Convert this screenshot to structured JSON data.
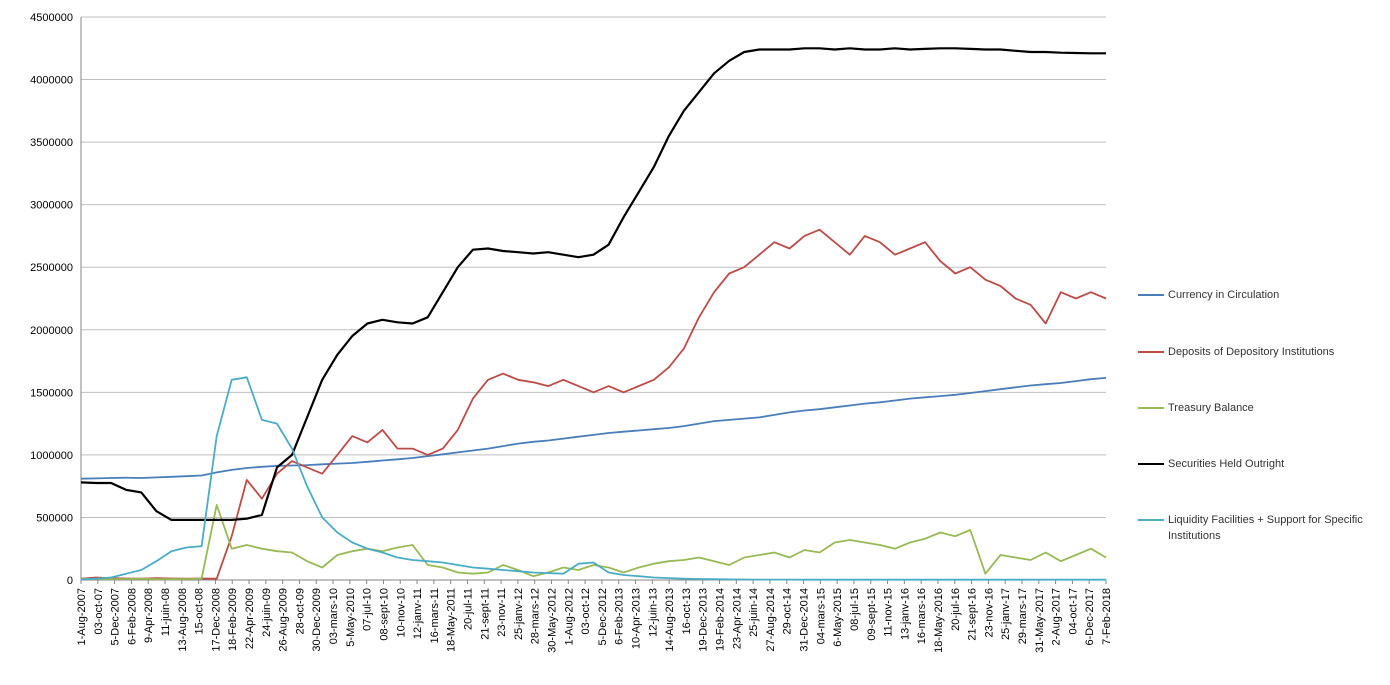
{
  "chart_data": {
    "type": "line",
    "title": "",
    "xlabel": "",
    "ylabel": "",
    "ylim": [
      0,
      4500000
    ],
    "yticks": [
      0,
      500000,
      1000000,
      1500000,
      2000000,
      2500000,
      3000000,
      3500000,
      4000000,
      4500000
    ],
    "grid": "horizontal",
    "legend_position": "right",
    "x_tick_labels": [
      "1-Aug-2007",
      "03-oct-07",
      "5-Dec-2007",
      "6-Feb-2008",
      "9-Apr-2008",
      "11-juin-08",
      "13-Aug-2008",
      "15-oct-08",
      "17-Dec-2008",
      "18-Feb-2009",
      "22-Apr-2009",
      "24-juin-09",
      "26-Aug-2009",
      "28-oct-09",
      "30-Dec-2009",
      "03-mars-10",
      "5-May-2010",
      "07-jul-10",
      "08-sept-10",
      "10-nov-10",
      "12-janv-11",
      "16-mars-11",
      "18-May-2011",
      "20-jul-11",
      "21-sept-11",
      "23-nov-11",
      "25-janv-12",
      "28-mars-12",
      "30-May-2012",
      "1-Aug-2012",
      "03-oct-12",
      "5-Dec-2012",
      "6-Feb-2013",
      "10-Apr-2013",
      "12-juin-13",
      "14-Aug-2013",
      "16-oct-13",
      "19-Dec-2013",
      "19-Feb-2014",
      "23-Apr-2014",
      "25-juin-14",
      "27-Aug-2014",
      "29-oct-14",
      "31-Dec-2014",
      "04-mars-15",
      "6-May-2015",
      "08-jul-15",
      "09-sept-15",
      "11-nov-15",
      "13-janv-16",
      "16-mars-16",
      "18-May-2016",
      "20-jul-16",
      "21-sept-16",
      "23-nov-16",
      "25-janv-17",
      "29-mars-17",
      "31-May-2017",
      "2-Aug-2017",
      "04-oct-17",
      "6-Dec-2017",
      "7-Feb-2018"
    ],
    "series": [
      {
        "name": "Currency in Circulation",
        "color": "#4a7ebb",
        "values": [
          810000,
          812000,
          815000,
          818000,
          815000,
          820000,
          825000,
          830000,
          835000,
          860000,
          880000,
          895000,
          905000,
          912000,
          915000,
          918000,
          925000,
          930000,
          935000,
          945000,
          955000,
          965000,
          975000,
          990000,
          1005000,
          1020000,
          1035000,
          1050000,
          1070000,
          1090000,
          1105000,
          1115000,
          1130000,
          1145000,
          1160000,
          1175000,
          1185000,
          1195000,
          1205000,
          1215000,
          1230000,
          1250000,
          1270000,
          1280000,
          1290000,
          1300000,
          1320000,
          1340000,
          1355000,
          1365000,
          1380000,
          1395000,
          1410000,
          1420000,
          1435000,
          1450000,
          1460000,
          1470000,
          1480000,
          1495000,
          1510000,
          1525000,
          1540000,
          1555000,
          1565000,
          1575000,
          1590000,
          1605000,
          1615000
        ]
      },
      {
        "name": "Deposits of Depository Institutions",
        "color": "#be4b48",
        "values": [
          10000,
          20000,
          15000,
          12000,
          10000,
          15000,
          12000,
          10000,
          12000,
          10000,
          350000,
          800000,
          650000,
          850000,
          950000,
          900000,
          850000,
          1000000,
          1150000,
          1100000,
          1200000,
          1050000,
          1050000,
          1000000,
          1050000,
          1200000,
          1450000,
          1600000,
          1650000,
          1600000,
          1580000,
          1550000,
          1600000,
          1550000,
          1500000,
          1550000,
          1500000,
          1550000,
          1600000,
          1700000,
          1850000,
          2100000,
          2300000,
          2450000,
          2500000,
          2600000,
          2700000,
          2650000,
          2750000,
          2800000,
          2700000,
          2600000,
          2750000,
          2700000,
          2600000,
          2650000,
          2700000,
          2550000,
          2450000,
          2500000,
          2400000,
          2350000,
          2250000,
          2200000,
          2050000,
          2300000,
          2250000,
          2300000,
          2250000
        ]
      },
      {
        "name": "Treasury Balance",
        "color": "#98b954",
        "values": [
          10000,
          8000,
          7000,
          8000,
          10000,
          7000,
          6000,
          8000,
          10000,
          600000,
          250000,
          280000,
          250000,
          230000,
          220000,
          150000,
          100000,
          200000,
          230000,
          250000,
          230000,
          260000,
          280000,
          120000,
          100000,
          60000,
          50000,
          60000,
          120000,
          80000,
          30000,
          60000,
          100000,
          80000,
          120000,
          100000,
          60000,
          100000,
          130000,
          150000,
          160000,
          180000,
          150000,
          120000,
          180000,
          200000,
          220000,
          180000,
          240000,
          220000,
          300000,
          320000,
          300000,
          280000,
          250000,
          300000,
          330000,
          380000,
          350000,
          400000,
          50000,
          200000,
          180000,
          160000,
          220000,
          150000,
          200000,
          250000,
          180000
        ]
      },
      {
        "name": "Securities Held Outright",
        "color": "#000000",
        "values": [
          780000,
          775000,
          775000,
          720000,
          700000,
          550000,
          480000,
          480000,
          480000,
          480000,
          480000,
          490000,
          520000,
          900000,
          1000000,
          1300000,
          1600000,
          1800000,
          1950000,
          2050000,
          2080000,
          2060000,
          2050000,
          2100000,
          2300000,
          2500000,
          2640000,
          2650000,
          2630000,
          2620000,
          2610000,
          2620000,
          2600000,
          2580000,
          2600000,
          2680000,
          2900000,
          3100000,
          3300000,
          3550000,
          3750000,
          3900000,
          4050000,
          4150000,
          4220000,
          4240000,
          4240000,
          4240000,
          4250000,
          4250000,
          4240000,
          4250000,
          4240000,
          4240000,
          4250000,
          4240000,
          4245000,
          4250000,
          4250000,
          4245000,
          4240000,
          4240000,
          4230000,
          4220000,
          4220000,
          4215000,
          4212000,
          4210000,
          4210000
        ]
      },
      {
        "name": "Liquidity Facilities + Support for Specific Institutions",
        "color": "#4bacc6",
        "values": [
          5000,
          10000,
          20000,
          50000,
          80000,
          150000,
          230000,
          260000,
          270000,
          1150000,
          1600000,
          1620000,
          1280000,
          1250000,
          1050000,
          750000,
          500000,
          380000,
          300000,
          250000,
          220000,
          180000,
          160000,
          150000,
          140000,
          120000,
          100000,
          90000,
          80000,
          70000,
          60000,
          55000,
          50000,
          130000,
          140000,
          60000,
          40000,
          30000,
          20000,
          15000,
          10000,
          8000,
          6000,
          5000,
          4000,
          3000,
          3000,
          3000,
          2000,
          2000,
          2000,
          2000,
          2000,
          2000,
          2000,
          2000,
          2000,
          2000,
          2000,
          2000,
          2000,
          2000,
          2000,
          2000,
          2000,
          2000,
          2000,
          2000,
          2000
        ]
      }
    ]
  }
}
